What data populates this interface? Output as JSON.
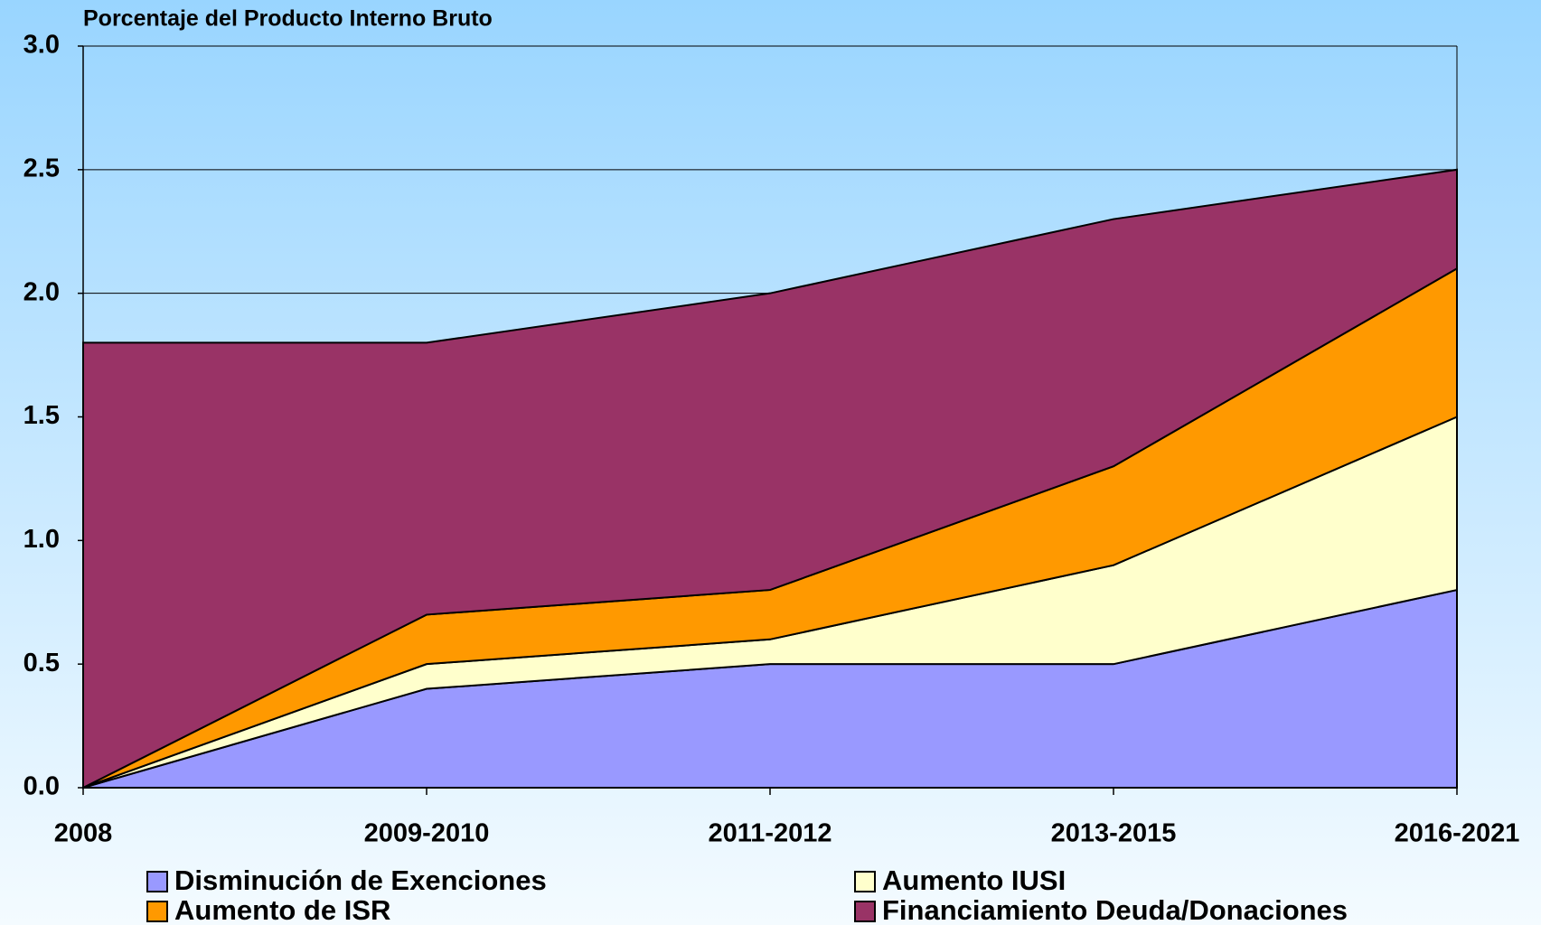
{
  "chart_data": {
    "type": "stacked_area",
    "title": "Porcentaje del Producto Interno Bruto",
    "categories": [
      "2008",
      "2009-2010",
      "2011-2012",
      "2013-2015",
      "2016-2021"
    ],
    "series": [
      {
        "name": "Disminución de Exenciones",
        "color": "#9999ff",
        "values": [
          0,
          0.4,
          0.5,
          0.5,
          0.8
        ]
      },
      {
        "name": "Aumento IUSI",
        "color": "#ffffcc",
        "values": [
          0,
          0.1,
          0.1,
          0.4,
          0.7
        ]
      },
      {
        "name": "Aumento de ISR",
        "color": "#ff9900",
        "values": [
          0,
          0.2,
          0.2,
          0.4,
          0.6
        ]
      },
      {
        "name": "Financiamiento Deuda/Donaciones",
        "color": "#993366",
        "values": [
          1.8,
          1.1,
          1.2,
          1.0,
          0.4
        ]
      }
    ],
    "ylim": [
      0,
      3
    ],
    "yticks": [
      {
        "value": 0,
        "label": "0.0"
      },
      0.5,
      {
        "value": 1,
        "label": "1.0"
      },
      1.5,
      {
        "value": 2,
        "label": "2.0"
      },
      2.5,
      {
        "value": 3,
        "label": "3.0"
      }
    ],
    "grid": true
  }
}
